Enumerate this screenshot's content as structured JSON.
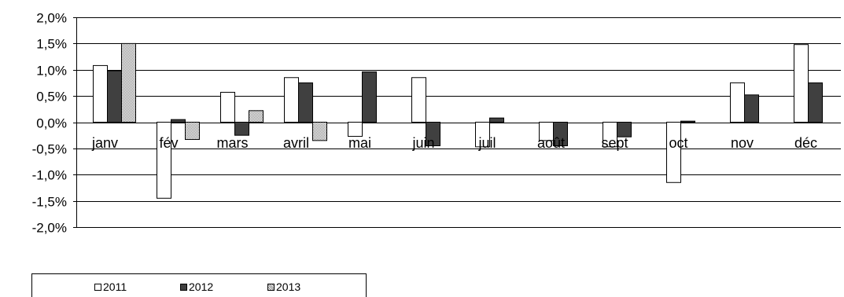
{
  "chart_data": {
    "type": "bar",
    "categories": [
      "janv",
      "fév",
      "mars",
      "avril",
      "mai",
      "juin",
      "juil",
      "août",
      "sept",
      "oct",
      "nov",
      "déc"
    ],
    "series": [
      {
        "name": "2011",
        "values": [
          1.08,
          -1.45,
          0.57,
          0.85,
          -0.27,
          0.85,
          -0.47,
          -0.35,
          -0.47,
          -1.15,
          0.75,
          1.48
        ]
      },
      {
        "name": "2012",
        "values": [
          0.98,
          0.05,
          -0.25,
          0.75,
          0.96,
          -0.45,
          0.08,
          -0.45,
          -0.28,
          0.02,
          0.52,
          0.75
        ]
      },
      {
        "name": "2013",
        "values": [
          1.5,
          -0.33,
          0.22,
          -0.35,
          null,
          null,
          null,
          null,
          null,
          null,
          null,
          null
        ]
      }
    ],
    "ylim": [
      -2.0,
      2.0
    ],
    "yticks": [
      "2,0%",
      "1,5%",
      "1,0%",
      "0,5%",
      "0,0%",
      "-0,5%",
      "-1,0%",
      "-1,5%",
      "-2,0%"
    ],
    "grid": true,
    "legend_position": "bottom"
  },
  "legend": {
    "items": [
      {
        "label": "2011"
      },
      {
        "label": "2012"
      },
      {
        "label": "2013"
      }
    ]
  }
}
